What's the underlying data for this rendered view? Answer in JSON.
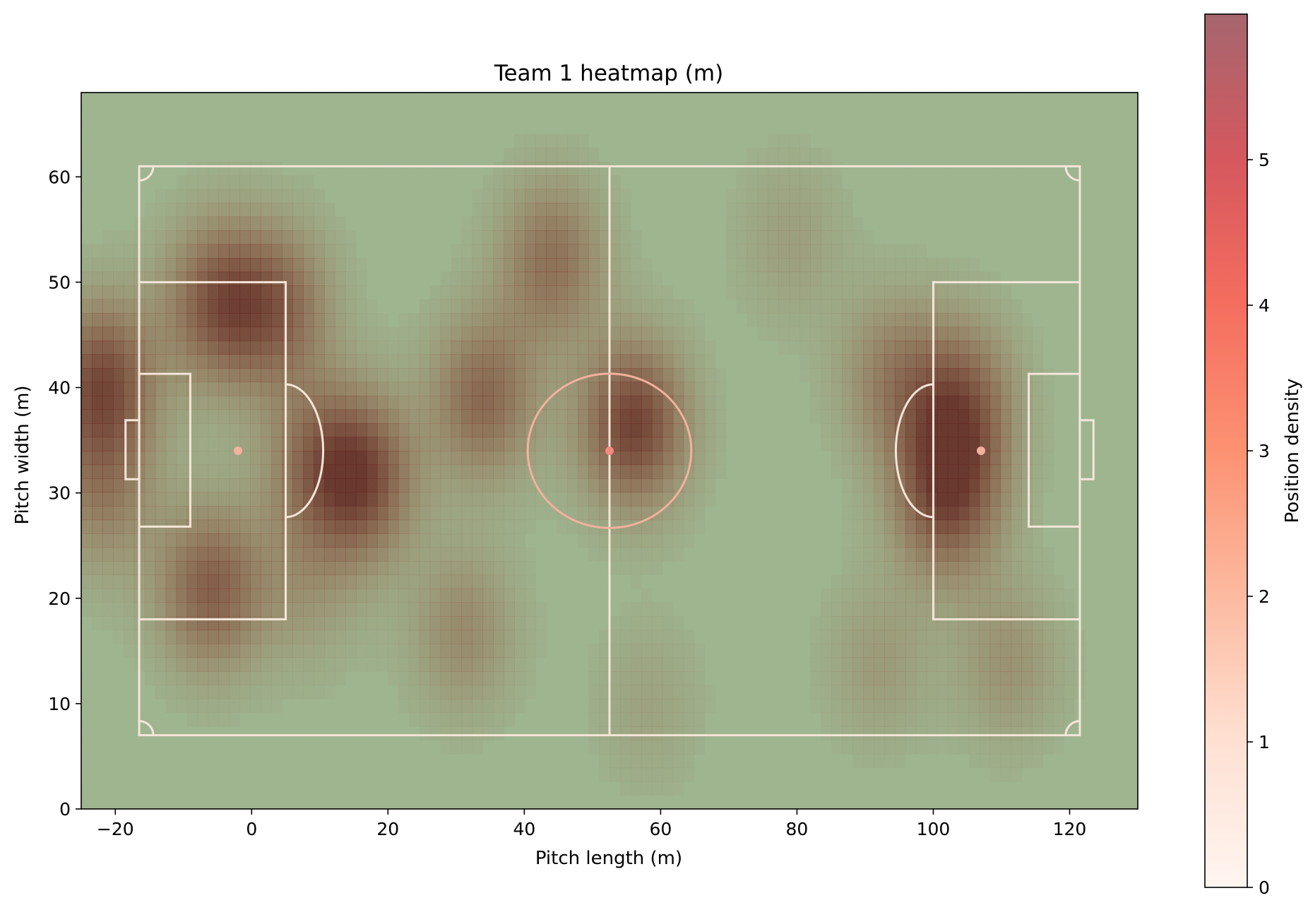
{
  "chart_data": {
    "type": "heatmap",
    "title": "Team 1 heatmap (m)",
    "xlabel": "Pitch length (m)",
    "ylabel": "Pitch width (m)",
    "colorbar_label": "Position density",
    "xlim": [
      -25,
      130
    ],
    "ylim": [
      0,
      68
    ],
    "xticks": [
      -20,
      0,
      20,
      40,
      60,
      80,
      100,
      120
    ],
    "yticks": [
      0,
      10,
      20,
      30,
      40,
      50,
      60
    ],
    "colorbar_range": [
      0,
      6
    ],
    "colorbar_ticks": [
      0,
      1,
      2,
      3,
      4,
      5
    ],
    "colormap": "Reds",
    "background_color": "#9cb48e",
    "pitch": {
      "x_range": [
        -16.5,
        121.5
      ],
      "y_range": [
        7,
        61
      ],
      "halfway_x": 52.5,
      "center_spot": [
        52.5,
        34
      ],
      "center_circle_radius": 12,
      "penalty_area_depth": 21.5,
      "penalty_area_y": [
        18,
        50
      ],
      "goal_area_depth": 7.5,
      "goal_area_y": [
        26.8,
        41.3
      ],
      "penalty_spots": [
        [
          -2,
          34
        ],
        [
          107,
          34
        ]
      ],
      "goal_y": [
        31.3,
        36.9
      ],
      "goal_depth": 2,
      "line_color": "#f5e6d8"
    },
    "hotspots": [
      {
        "x": -22,
        "y": 40.5,
        "density": 5.0
      },
      {
        "x": -22,
        "y": 30,
        "density": 2.6
      },
      {
        "x": -5,
        "y": 48,
        "density": 4.4
      },
      {
        "x": 4,
        "y": 47.5,
        "density": 3.6
      },
      {
        "x": -6,
        "y": 21,
        "density": 4.2
      },
      {
        "x": 16,
        "y": 31.5,
        "density": 5.0
      },
      {
        "x": 9,
        "y": 33,
        "density": 2.6
      },
      {
        "x": 34,
        "y": 39,
        "density": 3.8
      },
      {
        "x": 44,
        "y": 52,
        "density": 3.4
      },
      {
        "x": 56,
        "y": 36.5,
        "density": 5.5
      },
      {
        "x": 31,
        "y": 17,
        "density": 2.2
      },
      {
        "x": 102,
        "y": 30,
        "density": 5.2
      },
      {
        "x": 104,
        "y": 38.5,
        "density": 4.0
      },
      {
        "x": 94,
        "y": 41,
        "density": 2.6
      },
      {
        "x": 111,
        "y": 14,
        "density": 1.8
      },
      {
        "x": 92,
        "y": 14,
        "density": 1.4
      },
      {
        "x": 79,
        "y": 54,
        "density": 1.2
      },
      {
        "x": 8,
        "y": 21,
        "density": 1.4
      },
      {
        "x": 58,
        "y": 10,
        "density": 1.0
      }
    ]
  }
}
